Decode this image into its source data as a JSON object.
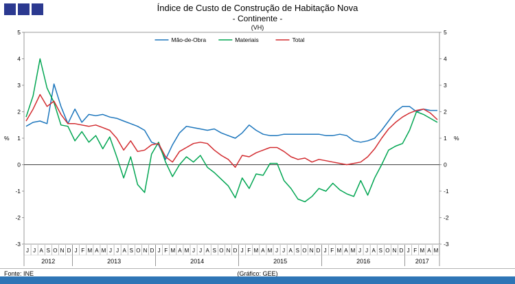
{
  "header": {
    "title_line1": "Índice de Custo de Construção de Habitação Nova",
    "title_line2": "- Continente -",
    "subtitle": "(VH)"
  },
  "footer": {
    "source": "Fonte: INE",
    "credit": "(Gráfico: GEE)"
  },
  "colors": {
    "logo_blue": "#2B3990",
    "footer_bar_blue": "#2E75B6",
    "mao_de_obra_blue": "#1B75BC",
    "materiais_green": "#00A551",
    "total_red": "#D22B2F",
    "axis_gray": "#808080"
  },
  "chart_data": {
    "type": "line",
    "title": "Índice de Custo de Construção de Habitação Nova - Continente - (VH)",
    "ylabel_left": "%",
    "ylabel_right": "%",
    "ylim": [
      -3,
      5
    ],
    "yticks": [
      5,
      4,
      3,
      2,
      1,
      0,
      -1,
      -2,
      -3
    ],
    "grid": false,
    "legend_position": "top",
    "x_labels": [
      "J",
      "J",
      "A",
      "S",
      "O",
      "N",
      "D",
      "J",
      "F",
      "M",
      "A",
      "M",
      "J",
      "J",
      "A",
      "S",
      "O",
      "N",
      "D",
      "J",
      "F",
      "M",
      "A",
      "M",
      "J",
      "J",
      "A",
      "S",
      "O",
      "N",
      "D",
      "J",
      "F",
      "M",
      "A",
      "M",
      "J",
      "J",
      "A",
      "S",
      "O",
      "N",
      "D",
      "J",
      "F",
      "M",
      "A",
      "M",
      "J",
      "J",
      "A",
      "S",
      "O",
      "N",
      "D",
      "J",
      "F",
      "M",
      "A",
      "M"
    ],
    "year_groups": [
      {
        "label": "2012",
        "count": 7
      },
      {
        "label": "2013",
        "count": 12
      },
      {
        "label": "2014",
        "count": 12
      },
      {
        "label": "2015",
        "count": 12
      },
      {
        "label": "2016",
        "count": 12
      },
      {
        "label": "2017",
        "count": 5
      }
    ],
    "series": [
      {
        "name": "Mão-de-Obra",
        "color": "#1B75BC",
        "values": [
          1.45,
          1.6,
          1.65,
          1.55,
          3.05,
          2.2,
          1.55,
          2.1,
          1.6,
          1.9,
          1.85,
          1.9,
          1.8,
          1.75,
          1.65,
          1.55,
          1.45,
          1.3,
          0.85,
          0.75,
          0.2,
          0.75,
          1.2,
          1.45,
          1.4,
          1.35,
          1.3,
          1.35,
          1.2,
          1.1,
          1.0,
          1.2,
          1.5,
          1.3,
          1.15,
          1.1,
          1.1,
          1.15,
          1.15,
          1.15,
          1.15,
          1.15,
          1.15,
          1.1,
          1.1,
          1.15,
          1.1,
          0.9,
          0.85,
          0.9,
          1.0,
          1.3,
          1.65,
          2.0,
          2.2,
          2.2,
          2.0,
          2.1,
          2.05,
          2.05
        ]
      },
      {
        "name": "Materiais",
        "color": "#00A551",
        "values": [
          1.8,
          2.6,
          4.0,
          2.9,
          2.35,
          1.5,
          1.45,
          0.9,
          1.25,
          0.85,
          1.1,
          0.6,
          1.05,
          0.3,
          -0.5,
          0.3,
          -0.75,
          -1.05,
          0.4,
          0.85,
          0.1,
          -0.45,
          0.0,
          0.3,
          0.1,
          0.35,
          -0.1,
          -0.3,
          -0.55,
          -0.8,
          -1.25,
          -0.5,
          -0.9,
          -0.35,
          -0.4,
          0.05,
          0.05,
          -0.6,
          -0.9,
          -1.3,
          -1.4,
          -1.2,
          -0.9,
          -1.0,
          -0.7,
          -0.95,
          -1.1,
          -1.2,
          -0.6,
          -1.15,
          -0.5,
          0.0,
          0.55,
          0.7,
          0.8,
          1.3,
          2.0,
          1.9,
          1.75,
          1.6
        ]
      },
      {
        "name": "Total",
        "color": "#D22B2F",
        "values": [
          1.65,
          2.1,
          2.65,
          2.2,
          2.4,
          1.9,
          1.55,
          1.55,
          1.5,
          1.45,
          1.5,
          1.4,
          1.3,
          1.0,
          0.55,
          0.9,
          0.5,
          0.55,
          0.75,
          0.8,
          0.3,
          0.1,
          0.5,
          0.65,
          0.8,
          0.85,
          0.8,
          0.55,
          0.35,
          0.2,
          -0.1,
          0.35,
          0.3,
          0.45,
          0.55,
          0.65,
          0.65,
          0.5,
          0.3,
          0.2,
          0.25,
          0.1,
          0.2,
          0.15,
          0.1,
          0.05,
          0.0,
          0.05,
          0.1,
          0.3,
          0.6,
          1.0,
          1.35,
          1.6,
          1.8,
          1.95,
          2.05,
          2.1,
          1.95,
          1.7
        ]
      }
    ]
  }
}
